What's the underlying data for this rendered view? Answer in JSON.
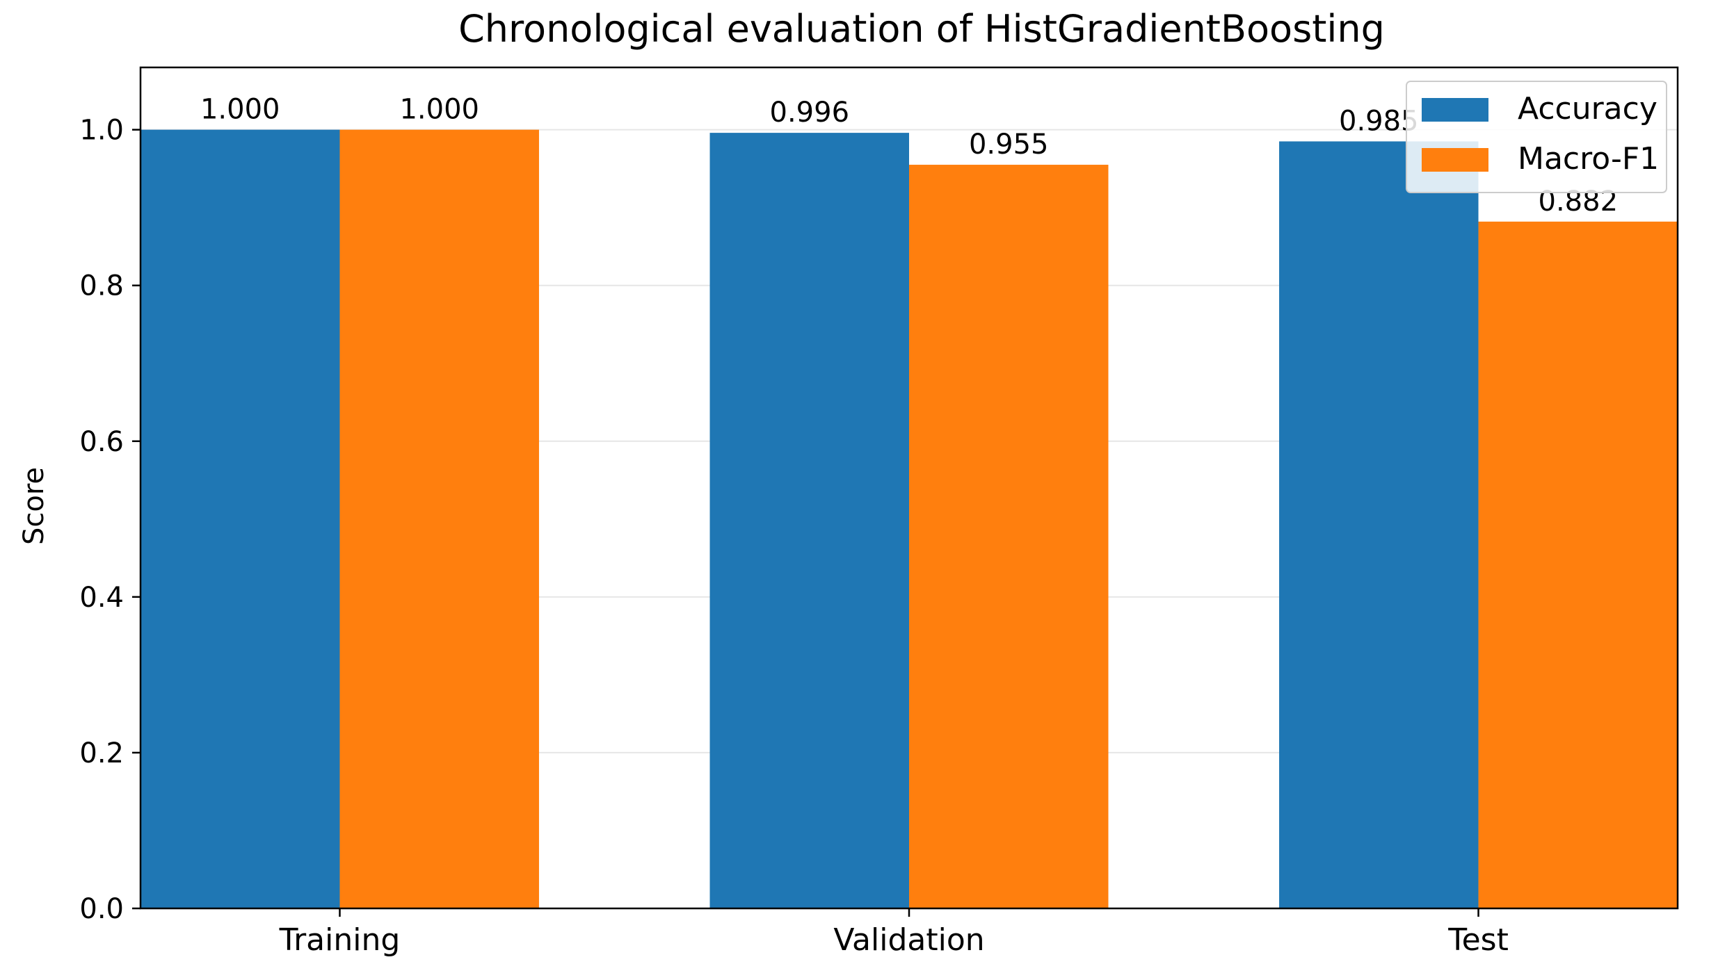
{
  "chart_data": {
    "type": "bar",
    "title": "Chronological evaluation of HistGradientBoosting",
    "xlabel": "",
    "ylabel": "Score",
    "categories": [
      "Training",
      "Validation",
      "Test"
    ],
    "series": [
      {
        "name": "Accuracy",
        "values": [
          1.0,
          0.996,
          0.985
        ],
        "labels": [
          "1.000",
          "0.996",
          "0.985"
        ],
        "color": "#1f77b4"
      },
      {
        "name": "Macro-F1",
        "values": [
          1.0,
          0.955,
          0.882
        ],
        "labels": [
          "1.000",
          "0.955",
          "0.882"
        ],
        "color": "#ff7f0e"
      }
    ],
    "ylim": [
      0,
      1.08
    ],
    "yticks": [
      0.0,
      0.2,
      0.4,
      0.6,
      0.8,
      1.0
    ],
    "ytick_labels": [
      "0.0",
      "0.2",
      "0.4",
      "0.6",
      "0.8",
      "1.0"
    ],
    "grid": "horizontal",
    "legend_position": "top-right"
  }
}
